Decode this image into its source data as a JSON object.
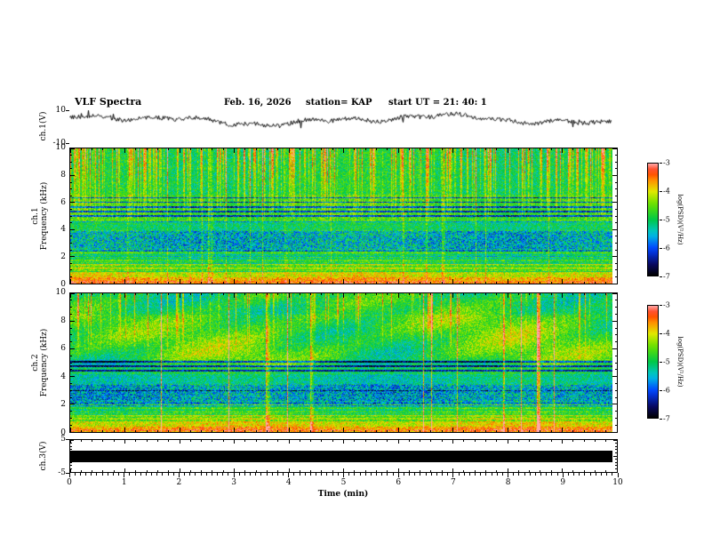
{
  "header": {
    "title": "VLF Spectra",
    "date": "Feb. 16, 2026",
    "station": "station= KAP",
    "start_ut": "start UT =  21: 40: 1"
  },
  "panels": {
    "waveform": {
      "ylabel": "ch.1(V)",
      "yticks": [
        "10",
        "-10"
      ],
      "ymin": -10,
      "ymax": 10
    },
    "spec1": {
      "channel": "ch.1",
      "ylabel": "Frequency (kHz)",
      "yticks": [
        "10",
        "8",
        "6",
        "4",
        "2",
        "0"
      ],
      "ymin": 0,
      "ymax": 10
    },
    "spec2": {
      "channel": "ch.2",
      "ylabel": "Frequency (kHz)",
      "yticks": [
        "10",
        "8",
        "6",
        "4",
        "2",
        "0"
      ],
      "ymin": 0,
      "ymax": 10
    },
    "ch3": {
      "ylabel": "ch.3(V)",
      "yticks": [
        "5",
        "-5"
      ],
      "ymin": -5,
      "ymax": 5
    }
  },
  "xaxis": {
    "label": "Time (min)",
    "ticks": [
      "0",
      "1",
      "2",
      "3",
      "4",
      "5",
      "6",
      "7",
      "8",
      "9",
      "10"
    ],
    "min": 0,
    "max": 10
  },
  "colorbar": {
    "label": "log(PSD)(V²/Hz)",
    "ticks": [
      "-3",
      "-4",
      "-5",
      "-6",
      "-7"
    ],
    "max": -3,
    "min": -7
  },
  "chart_data": [
    {
      "id": "ch1_waveform",
      "type": "line",
      "title": "ch.1 voltage vs time",
      "xlabel": "Time (min)",
      "ylabel": "ch.1(V)",
      "xlim": [
        0,
        10
      ],
      "ylim": [
        -10,
        10
      ],
      "appearance": "continuous noisy black trace, mean near +4 V, excursions roughly -3 to +9 V, record ends near 9.9 min"
    },
    {
      "id": "ch1_spectrogram",
      "type": "heatmap",
      "title": "ch.1 VLF spectrogram",
      "xlabel": "Time (min)",
      "ylabel": "Frequency (kHz)",
      "xlim": [
        0,
        10
      ],
      "ylim": [
        0,
        10
      ],
      "colorbar": {
        "label": "log(PSD)(V²/Hz)",
        "min": -7,
        "max": -3
      },
      "appearance": "green background with dense red/orange vertical sferic streaks from 10 kHz down to about 5 kHz, dark horizontal lines between 5 and 6.5 kHz, speckled blue-cyan band 2.4-4 kHz, banded yellow-green 1-2.4 kHz, bright yellow-orange band below 1 kHz with red bottom edge"
    },
    {
      "id": "ch2_spectrogram",
      "type": "heatmap",
      "title": "ch.2 VLF spectrogram",
      "xlabel": "Time (min)",
      "ylabel": "Frequency (kHz)",
      "xlim": [
        0,
        10
      ],
      "ylim": [
        0,
        10
      ],
      "colorbar": {
        "label": "log(PSD)(V²/Hz)",
        "min": -7,
        "max": -3
      },
      "appearance": "mostly green with yellow patches above 5 kHz, sparser red streaks, several full-height thin red vertical lines, dark horizontal lines near 4.4-5.1 kHz, speckled blue band 2-3.5 kHz, yellow band below 1 kHz"
    },
    {
      "id": "ch3_waveform",
      "type": "line",
      "title": "ch.3 voltage vs time",
      "xlabel": "Time (min)",
      "ylabel": "ch.3(V)",
      "xlim": [
        0,
        10
      ],
      "ylim": [
        -5,
        5
      ],
      "appearance": "saturated/clipped signal drawn as a solid thick black band centered on 0 V for the whole record"
    }
  ]
}
